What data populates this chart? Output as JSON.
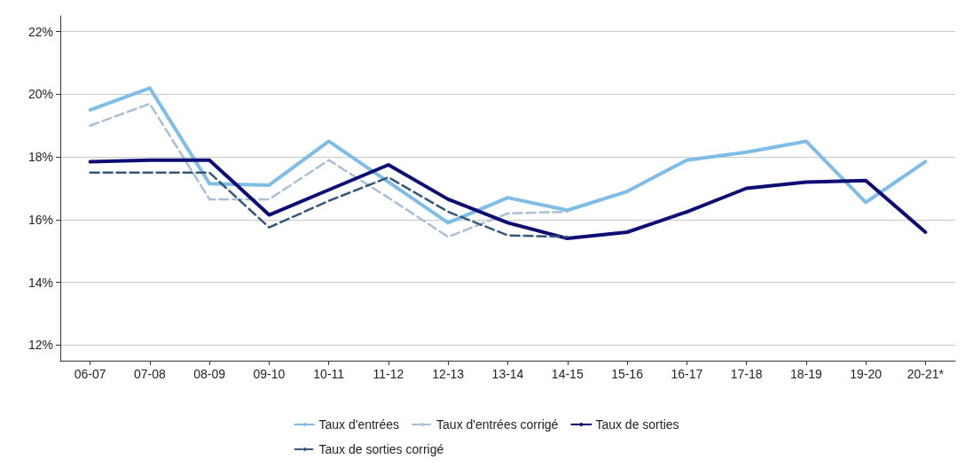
{
  "chart_data": {
    "type": "line",
    "categories": [
      "06-07",
      "07-08",
      "08-09",
      "09-10",
      "10-11",
      "11-12",
      "12-13",
      "13-14",
      "14-15",
      "15-16",
      "16-17",
      "17-18",
      "18-19",
      "19-20",
      "20-21*"
    ],
    "series": [
      {
        "name": "Taux d'entrées",
        "color": "#7fbde6",
        "line_style": "solid",
        "values": [
          19.5,
          20.2,
          17.15,
          17.1,
          18.5,
          17.2,
          15.9,
          16.7,
          16.3,
          16.9,
          17.9,
          18.15,
          18.5,
          16.55,
          17.85
        ]
      },
      {
        "name": "Taux d'entrées corrigé",
        "color": "#a9bfd6",
        "line_style": "dashed",
        "values": [
          19.0,
          19.7,
          16.65,
          16.65,
          17.9,
          16.7,
          15.45,
          16.2,
          16.25,
          null,
          null,
          null,
          null,
          null,
          null
        ]
      },
      {
        "name": "Taux de sorties",
        "color": "#0d0d73",
        "line_style": "solid",
        "values": [
          17.85,
          17.9,
          17.9,
          16.15,
          16.95,
          17.75,
          16.65,
          15.9,
          15.4,
          15.6,
          16.25,
          17.0,
          17.2,
          17.25,
          15.6
        ]
      },
      {
        "name": "Taux de sorties corrigé",
        "color": "#34587a",
        "line_style": "dashed",
        "values": [
          17.5,
          17.5,
          17.5,
          15.75,
          16.6,
          17.35,
          16.25,
          15.5,
          15.45,
          null,
          null,
          null,
          null,
          null,
          null
        ]
      }
    ],
    "ylim": [
      11.5,
      22.5
    ],
    "yticks": [
      {
        "value": 12,
        "label": "12%"
      },
      {
        "value": 14,
        "label": "14%"
      },
      {
        "value": 16,
        "label": "16%"
      },
      {
        "value": 18,
        "label": "18%"
      },
      {
        "value": 20,
        "label": "20%"
      },
      {
        "value": 22,
        "label": "22%"
      }
    ],
    "grid": "y",
    "legend": "bottom",
    "marker": "none"
  }
}
